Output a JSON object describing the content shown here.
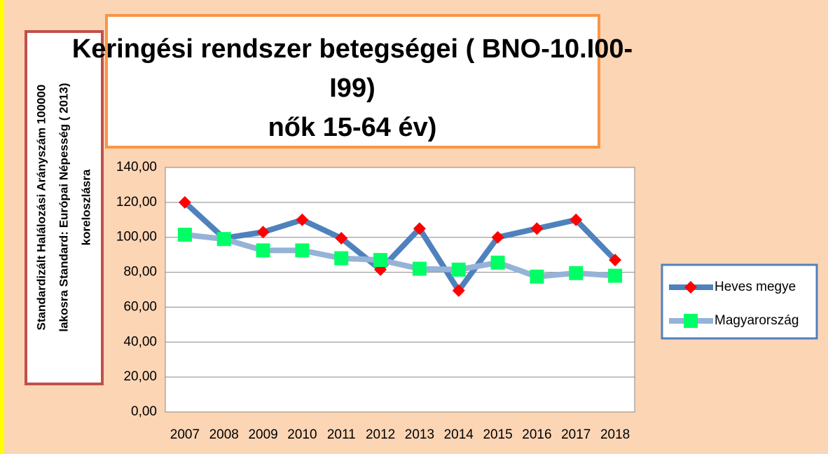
{
  "chart_data": {
    "type": "line",
    "title": [
      "Keringési rendszer betegségei  ( BNO-10.I00-",
      "I99)",
      "nők 15-64 év)"
    ],
    "y_label": [
      "Standardizált Halálozási Arányszám 100000",
      "lakosra Standard: Európai Népesség ( 2013)",
      "koreloszlásra"
    ],
    "categories": [
      "2007",
      "2008",
      "2009",
      "2010",
      "2011",
      "2012",
      "2013",
      "2014",
      "2015",
      "2016",
      "2017",
      "2018"
    ],
    "series": [
      {
        "name": "Heves megye",
        "color": "#4f81bd",
        "marker_color": "#ff0000",
        "marker": "diamond",
        "values": [
          120,
          99.5,
          103,
          110,
          99.5,
          81.5,
          105,
          69.5,
          100,
          105,
          110,
          87
        ]
      },
      {
        "name": "Magyarország",
        "color": "#95b3d7",
        "marker_color": "#00ff66",
        "marker": "square",
        "values": [
          101.5,
          99,
          92.5,
          92.5,
          88,
          87,
          82,
          81.5,
          85.5,
          77.5,
          79.5,
          78
        ]
      }
    ],
    "ylim": [
      0,
      140
    ],
    "yticks": [
      {
        "value": 0,
        "label": "0,00"
      },
      {
        "value": 20,
        "label": "20,00"
      },
      {
        "value": 40,
        "label": "40,00"
      },
      {
        "value": 60,
        "label": "60,00"
      },
      {
        "value": 80,
        "label": "80,00"
      },
      {
        "value": 100,
        "label": "100,00"
      },
      {
        "value": 120,
        "label": "120,00"
      },
      {
        "value": 140,
        "label": "140,00"
      }
    ],
    "grid": true
  }
}
